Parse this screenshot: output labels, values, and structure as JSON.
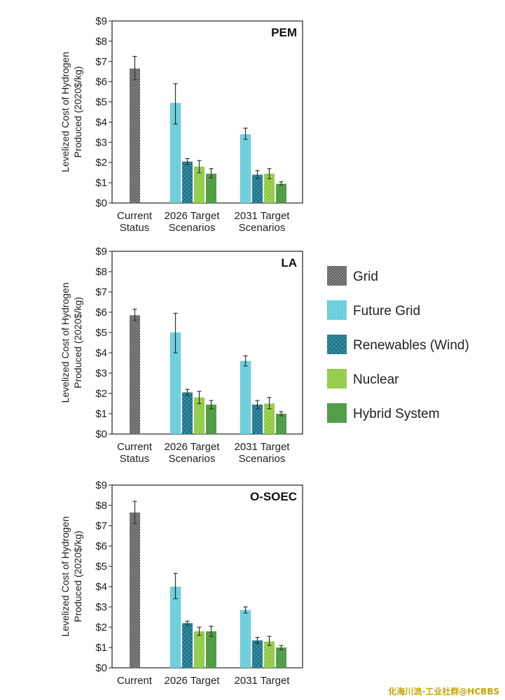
{
  "colors": {
    "grid": "#6a6a6a",
    "future_grid": "#4ec3d2",
    "renewables_wind": "#1c6f84",
    "nuclear": "#8cc63f",
    "hybrid_system": "#4f9a45"
  },
  "chart_data": [
    {
      "type": "bar",
      "title": "PEM",
      "ylabel": "Levelized Cost of Hydrogen Produced (2020$/kg)",
      "ylim": [
        0,
        9
      ],
      "yticks": [
        "$0",
        "$1",
        "$2",
        "$3",
        "$4",
        "$5",
        "$6",
        "$7",
        "$8",
        "$9"
      ],
      "categories": [
        {
          "line1": "Current",
          "line2": "Status"
        },
        {
          "line1": "2026 Target",
          "line2": "Scenarios"
        },
        {
          "line1": "2031 Target",
          "line2": "Scenarios"
        }
      ],
      "grid": false,
      "series": [
        {
          "name": "Grid",
          "values": [
            6.65,
            null,
            null
          ],
          "err_low": [
            6.1,
            null,
            null
          ],
          "err_high": [
            7.25,
            null,
            null
          ]
        },
        {
          "name": "Future Grid",
          "values": [
            null,
            4.95,
            3.4
          ],
          "err_low": [
            null,
            3.9,
            3.15
          ],
          "err_high": [
            null,
            5.9,
            3.7
          ]
        },
        {
          "name": "Renewables (Wind)",
          "values": [
            null,
            2.05,
            1.4
          ],
          "err_low": [
            null,
            1.9,
            1.2
          ],
          "err_high": [
            null,
            2.2,
            1.6
          ]
        },
        {
          "name": "Nuclear",
          "values": [
            null,
            1.8,
            1.45
          ],
          "err_low": [
            null,
            1.5,
            1.2
          ],
          "err_high": [
            null,
            2.1,
            1.7
          ]
        },
        {
          "name": "Hybrid System",
          "values": [
            null,
            1.45,
            0.95
          ],
          "err_low": [
            null,
            1.25,
            0.9
          ],
          "err_high": [
            null,
            1.7,
            1.05
          ]
        }
      ]
    },
    {
      "type": "bar",
      "title": "LA",
      "ylabel": "Levelized Cost of Hydrogen Produced (2020$/kg)",
      "ylim": [
        0,
        9
      ],
      "yticks": [
        "$0",
        "$1",
        "$2",
        "$3",
        "$4",
        "$5",
        "$6",
        "$7",
        "$8",
        "$9"
      ],
      "categories": [
        {
          "line1": "Current",
          "line2": "Status"
        },
        {
          "line1": "2026 Target",
          "line2": "Scenarios"
        },
        {
          "line1": "2031 Target",
          "line2": "Scenarios"
        }
      ],
      "grid": false,
      "series": [
        {
          "name": "Grid",
          "values": [
            5.85,
            null,
            null
          ],
          "err_low": [
            5.6,
            null,
            null
          ],
          "err_high": [
            6.15,
            null,
            null
          ]
        },
        {
          "name": "Future Grid",
          "values": [
            null,
            5.0,
            3.6
          ],
          "err_low": [
            null,
            4.0,
            3.35
          ],
          "err_high": [
            null,
            5.95,
            3.85
          ]
        },
        {
          "name": "Renewables (Wind)",
          "values": [
            null,
            2.05,
            1.45
          ],
          "err_low": [
            null,
            1.9,
            1.25
          ],
          "err_high": [
            null,
            2.2,
            1.65
          ]
        },
        {
          "name": "Nuclear",
          "values": [
            null,
            1.8,
            1.5
          ],
          "err_low": [
            null,
            1.5,
            1.25
          ],
          "err_high": [
            null,
            2.1,
            1.8
          ]
        },
        {
          "name": "Hybrid System",
          "values": [
            null,
            1.45,
            1.0
          ],
          "err_low": [
            null,
            1.25,
            0.9
          ],
          "err_high": [
            null,
            1.65,
            1.1
          ]
        }
      ]
    },
    {
      "type": "bar",
      "title": "O-SOEC",
      "ylabel": "Levelized Cost of Hydrogen Produced (2020$/kg)",
      "ylim": [
        0,
        9
      ],
      "yticks": [
        "$0",
        "$1",
        "$2",
        "$3",
        "$4",
        "$5",
        "$6",
        "$7",
        "$8",
        "$9"
      ],
      "categories": [
        {
          "line1": "Current",
          "line2": ""
        },
        {
          "line1": "2026 Target",
          "line2": ""
        },
        {
          "line1": "2031 Target",
          "line2": ""
        }
      ],
      "grid": false,
      "series": [
        {
          "name": "Grid",
          "values": [
            7.65,
            null,
            null
          ],
          "err_low": [
            7.1,
            null,
            null
          ],
          "err_high": [
            8.2,
            null,
            null
          ]
        },
        {
          "name": "Future Grid",
          "values": [
            null,
            4.0,
            2.85
          ],
          "err_low": [
            null,
            3.4,
            2.7
          ],
          "err_high": [
            null,
            4.65,
            3.0
          ]
        },
        {
          "name": "Renewables (Wind)",
          "values": [
            null,
            2.2,
            1.35
          ],
          "err_low": [
            null,
            2.1,
            1.2
          ],
          "err_high": [
            null,
            2.3,
            1.5
          ]
        },
        {
          "name": "Nuclear",
          "values": [
            null,
            1.8,
            1.3
          ],
          "err_low": [
            null,
            1.6,
            1.1
          ],
          "err_high": [
            null,
            2.0,
            1.55
          ]
        },
        {
          "name": "Hybrid System",
          "values": [
            null,
            1.8,
            1.0
          ],
          "err_low": [
            null,
            1.55,
            0.9
          ],
          "err_high": [
            null,
            2.05,
            1.1
          ]
        }
      ]
    }
  ],
  "legend": {
    "items": [
      "Grid",
      "Future Grid",
      "Renewables (Wind)",
      "Nuclear",
      "Hybrid System"
    ]
  },
  "watermark": "化海川流-工业社群@HCBBS"
}
